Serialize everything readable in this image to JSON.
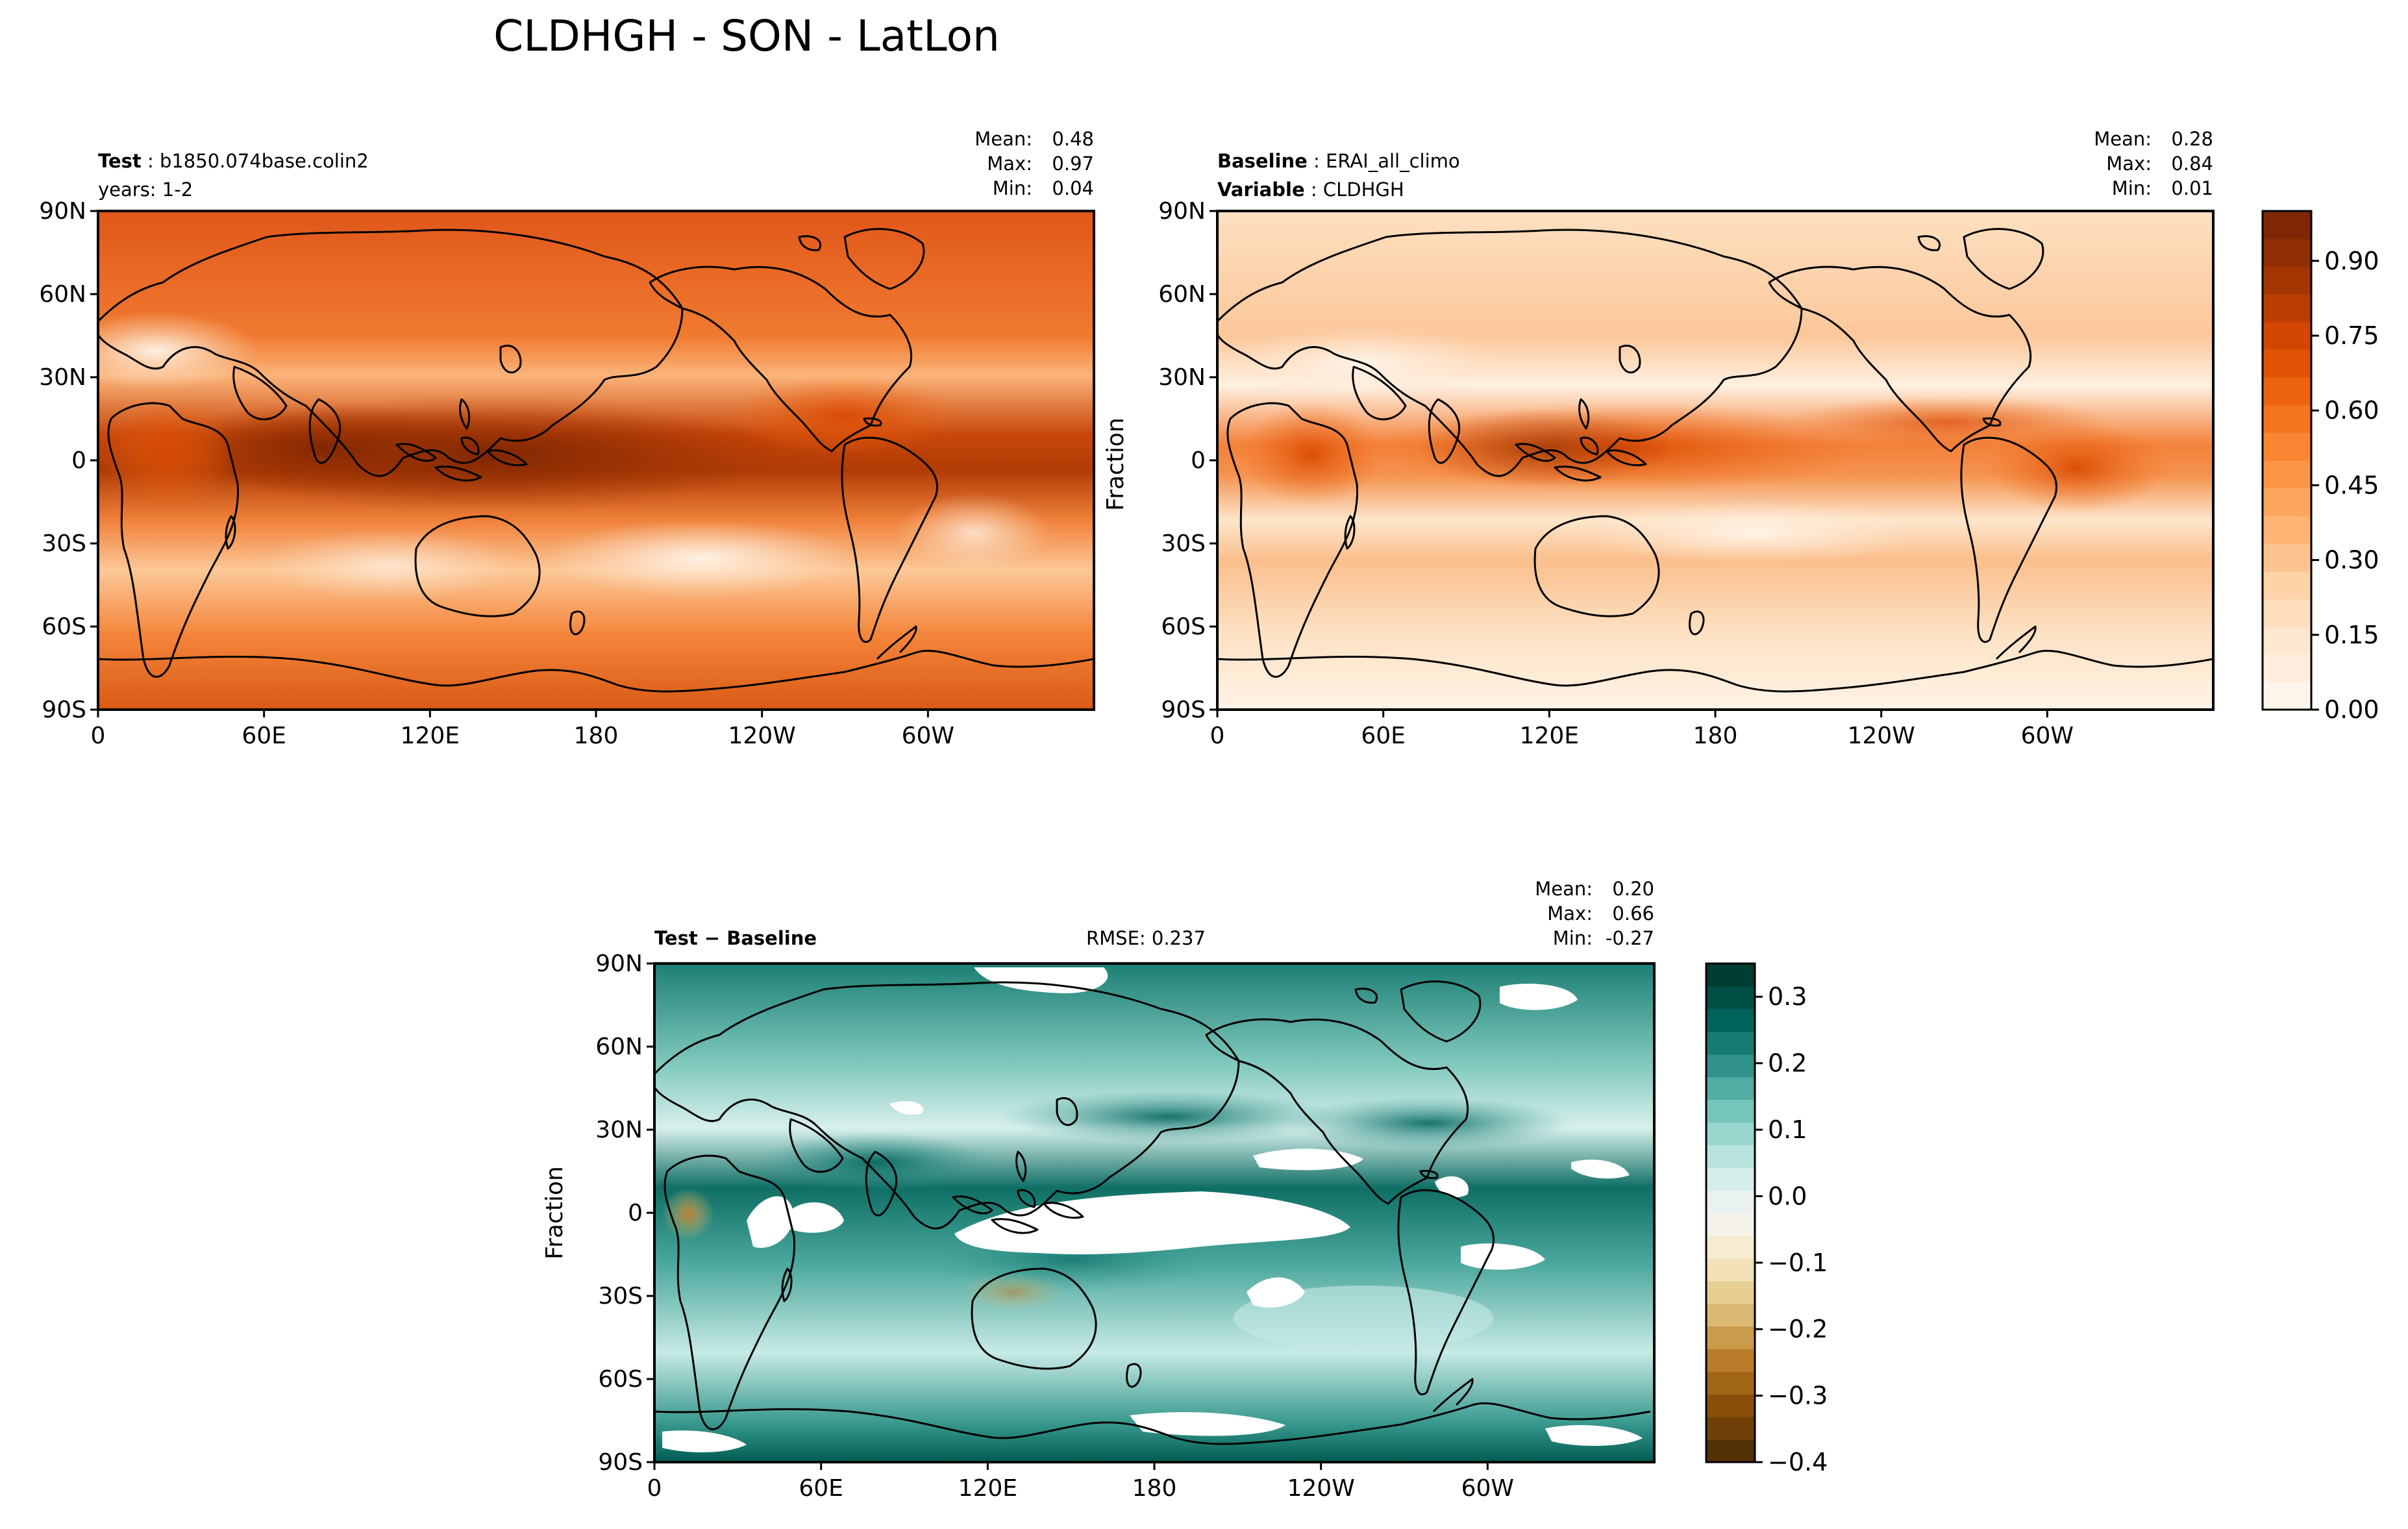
{
  "figure": {
    "title": "CLDHGH - SON - LatLon"
  },
  "longitude_ticks": [
    "0",
    "60E",
    "120E",
    "180",
    "120W",
    "60W"
  ],
  "latitude_ticks": [
    "90N",
    "60N",
    "30N",
    "0",
    "30S",
    "60S",
    "90S"
  ],
  "panels": {
    "test": {
      "label_bold": "Test",
      "label_value": "b1850.074base.colin2",
      "line2": "years: 1-2",
      "stats": {
        "mean_label": "Mean:",
        "mean": "0.48",
        "max_label": "Max:",
        "max": "0.97",
        "min_label": "Min:",
        "min": "0.04"
      }
    },
    "baseline": {
      "label_bold": "Baseline",
      "label_value": "ERAI_all_climo",
      "line2_bold": "Variable",
      "line2_value": "CLDHGH",
      "ylabel": "Fraction",
      "stats": {
        "mean_label": "Mean:",
        "mean": "0.28",
        "max_label": "Max:",
        "max": "0.84",
        "min_label": "Min:",
        "min": "0.01"
      }
    },
    "diff": {
      "label_bold": "Test − Baseline",
      "rmse": "RMSE: 0.237",
      "ylabel": "Fraction",
      "stats": {
        "mean_label": "Mean:",
        "mean": "0.20",
        "max_label": "Max:",
        "max": "0.66",
        "min_label": "Min:",
        "min": "-0.27"
      }
    }
  },
  "colorbar_main": {
    "ticks": [
      "0.00",
      "0.15",
      "0.30",
      "0.45",
      "0.60",
      "0.75",
      "0.90"
    ],
    "range": [
      0,
      1
    ],
    "colors": [
      "#fff5eb",
      "#fee6ce",
      "#fdd0a2",
      "#fdae6b",
      "#fd8d3c",
      "#f16913",
      "#d94801",
      "#a63603",
      "#7f2704"
    ]
  },
  "colorbar_diff": {
    "ticks": [
      "0.3",
      "0.2",
      "0.1",
      "0.0",
      "−0.1",
      "−0.2",
      "−0.3",
      "−0.4"
    ],
    "range": [
      -0.4,
      0.35
    ],
    "colors": [
      "#543005",
      "#8c510a",
      "#bf812d",
      "#dfc27d",
      "#f6e8c3",
      "#f5f5f5",
      "#c7eae5",
      "#80cdc1",
      "#35978f",
      "#01665e",
      "#003c30"
    ]
  },
  "map_colors": {
    "test": {
      "base": "#e8631c",
      "tropics": "#a63603",
      "dry": "#fdd0a2",
      "polar": "#d94801"
    },
    "baseline": {
      "base": "#fdd0a2",
      "tropics": "#e8631c",
      "dry": "#fff5eb",
      "polar": "#fee6ce"
    },
    "diff": {
      "base": "#35978f",
      "strong": "#01665e",
      "weak": "#c7eae5",
      "missing": "#ffffff"
    }
  }
}
